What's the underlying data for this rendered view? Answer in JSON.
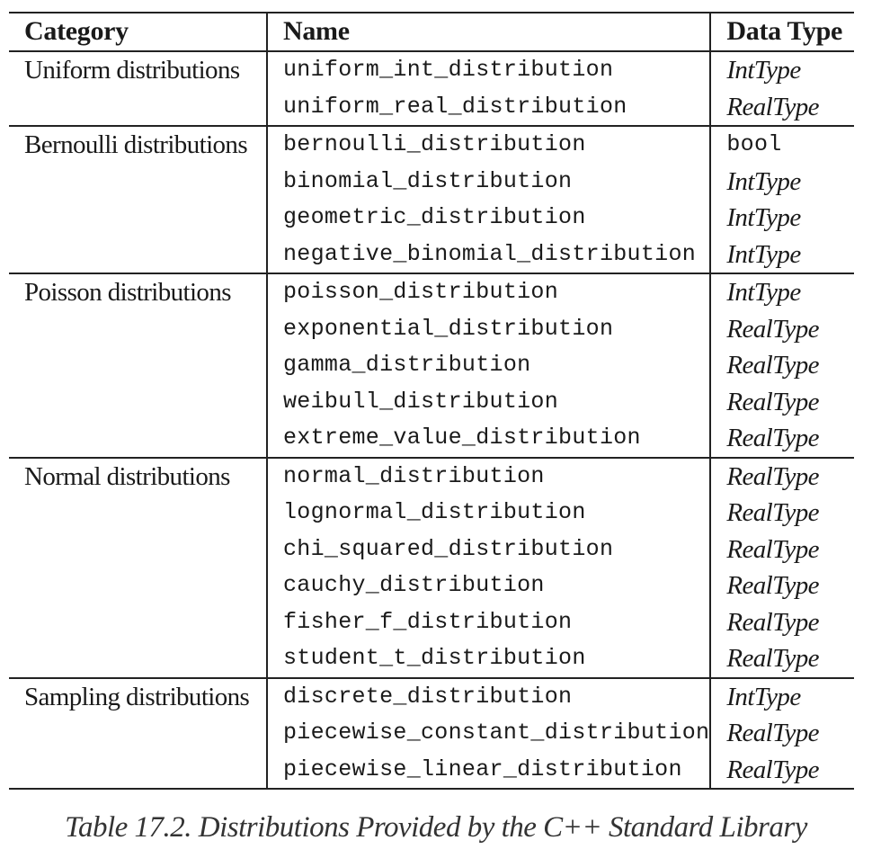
{
  "table": {
    "headers": {
      "category": "Category",
      "name": "Name",
      "data_type": "Data Type"
    },
    "groups": [
      {
        "category": "Uniform distributions",
        "rows": [
          {
            "name": "uniform_int_distribution",
            "type": "IntType"
          },
          {
            "name": "uniform_real_distribution",
            "type": "RealType"
          }
        ]
      },
      {
        "category": "Bernoulli distributions",
        "rows": [
          {
            "name": "bernoulli_distribution",
            "type": "bool",
            "mono": true
          },
          {
            "name": "binomial_distribution",
            "type": "IntType"
          },
          {
            "name": "geometric_distribution",
            "type": "IntType"
          },
          {
            "name": "negative_binomial_distribution",
            "type": "IntType"
          }
        ]
      },
      {
        "category": "Poisson distributions",
        "rows": [
          {
            "name": "poisson_distribution",
            "type": "IntType"
          },
          {
            "name": "exponential_distribution",
            "type": "RealType"
          },
          {
            "name": "gamma_distribution",
            "type": "RealType"
          },
          {
            "name": "weibull_distribution",
            "type": "RealType"
          },
          {
            "name": "extreme_value_distribution",
            "type": "RealType"
          }
        ]
      },
      {
        "category": "Normal distributions",
        "rows": [
          {
            "name": "normal_distribution",
            "type": "RealType"
          },
          {
            "name": "lognormal_distribution",
            "type": "RealType"
          },
          {
            "name": "chi_squared_distribution",
            "type": "RealType"
          },
          {
            "name": "cauchy_distribution",
            "type": "RealType"
          },
          {
            "name": "fisher_f_distribution",
            "type": "RealType"
          },
          {
            "name": "student_t_distribution",
            "type": "RealType"
          }
        ]
      },
      {
        "category": "Sampling distributions",
        "rows": [
          {
            "name": "discrete_distribution",
            "type": "IntType"
          },
          {
            "name": "piecewise_constant_distribution",
            "type": "RealType"
          },
          {
            "name": "piecewise_linear_distribution",
            "type": "RealType"
          }
        ]
      }
    ]
  },
  "caption": "Table 17.2. Distributions Provided by the C++ Standard Library"
}
